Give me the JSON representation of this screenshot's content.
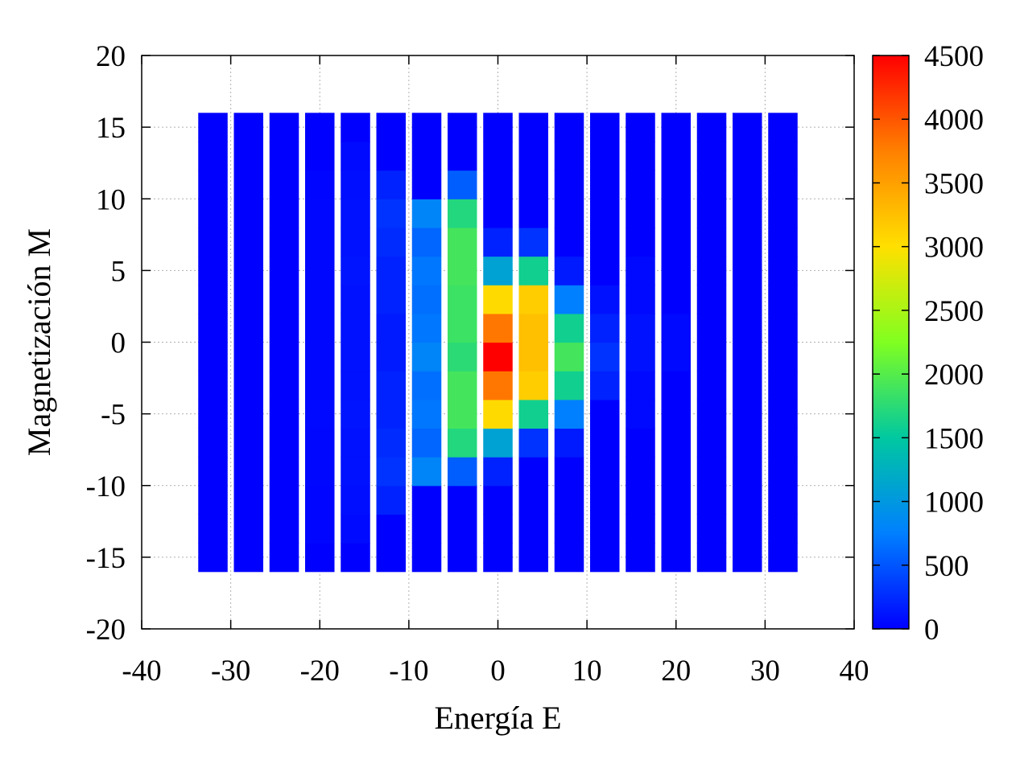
{
  "chart_data": {
    "type": "heatmap",
    "title": "",
    "xlabel": "Energía E",
    "ylabel": "Magnetización M",
    "xlim": [
      -40,
      40
    ],
    "ylim": [
      -20,
      20
    ],
    "xticks": [
      -40,
      -30,
      -20,
      -10,
      0,
      10,
      20,
      30,
      40
    ],
    "yticks": [
      -20,
      -15,
      -10,
      -5,
      0,
      5,
      10,
      15,
      20
    ],
    "grid": true,
    "colorbar": {
      "min": 0,
      "max": 4500,
      "ticks": [
        0,
        500,
        1000,
        1500,
        2000,
        2500,
        3000,
        3500,
        4000,
        4500
      ],
      "colormap": [
        "#0000ff",
        "#0080ff",
        "#00c8a0",
        "#80ff20",
        "#ffe000",
        "#ff8000",
        "#ff0000"
      ]
    },
    "columns_x": [
      -32,
      -28,
      -24,
      -20,
      -16,
      -12,
      -8,
      -4,
      0,
      4,
      8,
      12,
      16,
      20,
      24,
      28,
      32
    ],
    "cell_width": 3.3,
    "row_y": [
      -15,
      -13,
      -11,
      -9,
      -7,
      -5,
      -3,
      -1,
      1,
      3,
      5,
      7,
      9,
      11,
      13,
      15
    ],
    "cell_height": 2,
    "values": [
      [
        0,
        0,
        0,
        0,
        0,
        0,
        0,
        0,
        0,
        0,
        0,
        0,
        0,
        0,
        0,
        0
      ],
      [
        0,
        0,
        0,
        0,
        0,
        0,
        0,
        0,
        0,
        0,
        0,
        0,
        0,
        0,
        0,
        0
      ],
      [
        0,
        0,
        0,
        0,
        0,
        0,
        0,
        0,
        0,
        0,
        0,
        0,
        0,
        0,
        0,
        0
      ],
      [
        0,
        30,
        30,
        40,
        40,
        50,
        40,
        40,
        40,
        40,
        40,
        40,
        40,
        30,
        0,
        0
      ],
      [
        0,
        60,
        80,
        100,
        100,
        120,
        100,
        100,
        100,
        100,
        120,
        100,
        100,
        80,
        60,
        0
      ],
      [
        0,
        0,
        200,
        300,
        250,
        200,
        200,
        150,
        150,
        200,
        200,
        250,
        300,
        200,
        0,
        0
      ],
      [
        0,
        0,
        0,
        800,
        600,
        700,
        650,
        800,
        700,
        650,
        700,
        600,
        800,
        0,
        0,
        0
      ],
      [
        0,
        0,
        0,
        550,
        1700,
        1900,
        1900,
        1750,
        1850,
        1850,
        1900,
        1900,
        1700,
        550,
        0,
        0
      ],
      [
        0,
        0,
        0,
        200,
        1100,
        3050,
        3800,
        4500,
        3800,
        3050,
        1100,
        200,
        0,
        0,
        0,
        0
      ],
      [
        0,
        0,
        0,
        0,
        300,
        1600,
        3150,
        3250,
        3250,
        3150,
        1600,
        300,
        0,
        0,
        0,
        0
      ],
      [
        0,
        0,
        0,
        0,
        150,
        750,
        1600,
        1900,
        1600,
        750,
        150,
        0,
        0,
        0,
        0,
        0
      ],
      [
        0,
        0,
        0,
        0,
        0,
        0,
        200,
        300,
        200,
        100,
        0,
        0,
        0,
        0,
        0,
        0
      ],
      [
        0,
        0,
        0,
        0,
        0,
        50,
        50,
        100,
        100,
        50,
        50,
        0,
        0,
        0,
        0,
        0
      ],
      [
        0,
        0,
        0,
        0,
        0,
        0,
        0,
        50,
        50,
        0,
        0,
        0,
        0,
        0,
        0,
        0
      ],
      [
        0,
        0,
        0,
        0,
        0,
        0,
        0,
        0,
        0,
        0,
        0,
        0,
        0,
        0,
        0,
        0
      ],
      [
        0,
        0,
        0,
        0,
        0,
        0,
        0,
        0,
        0,
        0,
        0,
        0,
        0,
        0,
        0,
        0
      ],
      [
        0,
        0,
        0,
        0,
        0,
        0,
        0,
        0,
        0,
        0,
        0,
        0,
        0,
        0,
        0,
        0
      ]
    ]
  }
}
